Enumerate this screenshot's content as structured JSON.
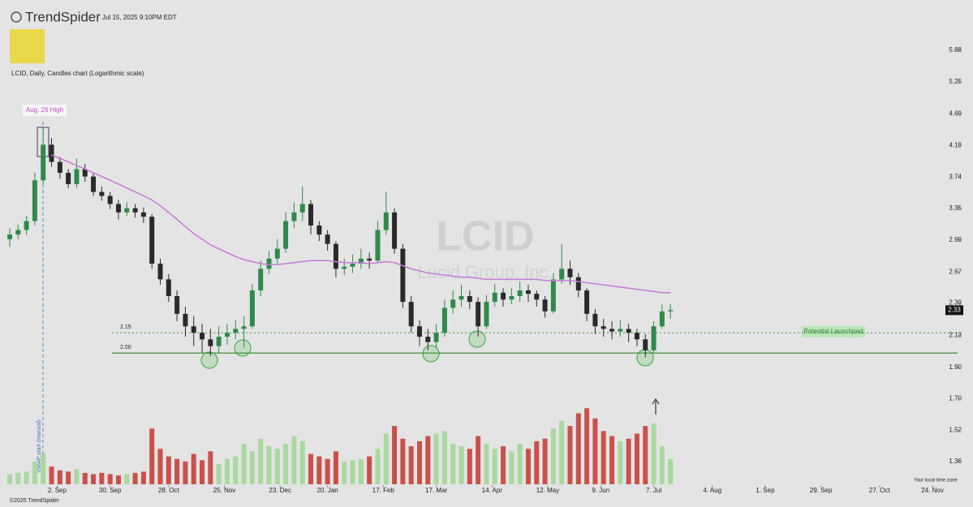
{
  "header": {
    "brand": "TrendSpider",
    "timestamp": "Jul 15, 2025 9:10PM EDT",
    "chart_label": "LCID, Daily, Candles chart (Logarithmic scale)",
    "footer": "©2025 TrendSpider",
    "timezone": "Your local time zone"
  },
  "chart_data": {
    "type": "candlestick",
    "watermark": "LCID",
    "subtitle": "Lucid Group, Inc.",
    "log_scale": true,
    "annotations": {
      "high": "Aug. 26 High",
      "launchpad": "Potential Launchpad",
      "vwap": "VWAP start (manual)"
    },
    "up_color": "#2f8a4a",
    "down_color": "#2a2a2a",
    "volume_up_color": "#a9d9a0",
    "volume_down_color": "#c9514a",
    "ma_color": "#c77ad8",
    "level_color": "#3f8f3f",
    "xlim": [
      0,
      340
    ],
    "xticks": [
      {
        "value": 17,
        "label": "2. Sep"
      },
      {
        "value": 36,
        "label": "30. Sep"
      },
      {
        "value": 57,
        "label": "28. Oct"
      },
      {
        "value": 77,
        "label": "25. Nov"
      },
      {
        "value": 97,
        "label": "23. Dec"
      },
      {
        "value": 114,
        "label": "20. Jan"
      },
      {
        "value": 134,
        "label": "17. Feb"
      },
      {
        "value": 153,
        "label": "17. Mar"
      },
      {
        "value": 173,
        "label": "14. Apr"
      },
      {
        "value": 193,
        "label": "12. May"
      },
      {
        "value": 212,
        "label": "9. Jun"
      },
      {
        "value": 231,
        "label": "7. Jul"
      },
      {
        "value": 252,
        "label": "4. Aug"
      },
      {
        "value": 271,
        "label": "1. Sep"
      },
      {
        "value": 291,
        "label": "29. Sep"
      },
      {
        "value": 312,
        "label": "27. Oct"
      },
      {
        "value": 331,
        "label": "24. Nov"
      }
    ],
    "ylim": [
      1.25,
      7.03
    ],
    "yticks": [
      5.88,
      5.25,
      4.69,
      4.19,
      3.74,
      3.35,
      2.99,
      2.67,
      2.39,
      2.13,
      {
        "value": 1.9,
        "label": "1.90"
      },
      {
        "value": 1.7,
        "label": "1.70"
      },
      1.52,
      1.36
    ],
    "levels": [
      {
        "value": 2.15,
        "label": "2.15"
      },
      {
        "value": 2.0,
        "label": "2.00"
      }
    ],
    "last_price": 2.33,
    "x": [
      0,
      3,
      6,
      9,
      12,
      15,
      18,
      21,
      24,
      27,
      30,
      33,
      36,
      39,
      42,
      45,
      48,
      51,
      54,
      57,
      60,
      63,
      66,
      69,
      72,
      75,
      78,
      81,
      84,
      87,
      90,
      93,
      96,
      99,
      102,
      105,
      108,
      111,
      114,
      117,
      120,
      123,
      126,
      129,
      132,
      135,
      138,
      141,
      144,
      147,
      150,
      153,
      156,
      159,
      162,
      165,
      168,
      171,
      174,
      177,
      180,
      183,
      186,
      189,
      192,
      195,
      198,
      201,
      204,
      207,
      210,
      213,
      216,
      219,
      222,
      225,
      228,
      231,
      234,
      237
    ],
    "open": [
      3.0,
      3.05,
      3.1,
      3.2,
      3.7,
      4.2,
      3.95,
      3.8,
      3.65,
      3.85,
      3.75,
      3.55,
      3.5,
      3.4,
      3.3,
      3.35,
      3.3,
      3.25,
      2.75,
      2.6,
      2.45,
      2.3,
      2.2,
      2.15,
      2.1,
      2.05,
      2.12,
      2.15,
      2.18,
      2.2,
      2.5,
      2.7,
      2.8,
      2.9,
      3.2,
      3.3,
      3.4,
      3.15,
      3.05,
      2.95,
      2.7,
      2.72,
      2.75,
      2.8,
      2.78,
      3.1,
      3.3,
      2.9,
      2.4,
      2.2,
      2.12,
      2.08,
      2.15,
      2.35,
      2.42,
      2.45,
      2.4,
      2.2,
      2.4,
      2.48,
      2.42,
      2.45,
      2.5,
      2.47,
      2.42,
      2.32,
      2.6,
      2.7,
      2.62,
      2.5,
      2.3,
      2.2,
      2.18,
      2.16,
      2.18,
      2.15,
      2.1,
      2.02,
      2.2,
      2.32
    ],
    "high": [
      3.12,
      3.16,
      3.26,
      3.8,
      4.45,
      4.3,
      4.02,
      3.85,
      4.0,
      3.92,
      3.8,
      3.62,
      3.55,
      3.45,
      3.42,
      3.4,
      3.36,
      3.28,
      2.8,
      2.65,
      2.5,
      2.36,
      2.28,
      2.22,
      2.18,
      2.2,
      2.22,
      2.25,
      2.28,
      2.56,
      2.78,
      2.88,
      3.0,
      3.3,
      3.42,
      3.62,
      3.45,
      3.2,
      3.1,
      2.98,
      2.8,
      2.84,
      2.9,
      2.86,
      3.2,
      3.55,
      3.35,
      2.95,
      2.45,
      2.25,
      2.18,
      2.22,
      2.42,
      2.5,
      2.55,
      2.5,
      2.44,
      2.46,
      2.56,
      2.52,
      2.52,
      2.58,
      2.55,
      2.5,
      2.45,
      2.66,
      2.95,
      2.78,
      2.66,
      2.52,
      2.34,
      2.26,
      2.24,
      2.25,
      2.22,
      2.18,
      2.14,
      2.24,
      2.38,
      2.38
    ],
    "low": [
      2.92,
      3.0,
      3.05,
      3.15,
      3.65,
      3.88,
      3.72,
      3.6,
      3.6,
      3.68,
      3.5,
      3.44,
      3.34,
      3.22,
      3.26,
      3.24,
      3.18,
      2.7,
      2.55,
      2.4,
      2.24,
      2.12,
      2.05,
      2.0,
      1.98,
      2.0,
      2.06,
      2.1,
      2.04,
      2.18,
      2.45,
      2.65,
      2.75,
      2.86,
      3.12,
      3.2,
      3.05,
      2.98,
      2.88,
      2.62,
      2.64,
      2.66,
      2.7,
      2.7,
      2.75,
      3.05,
      2.85,
      2.35,
      2.15,
      2.05,
      2.02,
      2.04,
      2.12,
      2.3,
      2.36,
      2.34,
      2.12,
      2.18,
      2.36,
      2.36,
      2.38,
      2.4,
      2.4,
      2.36,
      2.27,
      2.3,
      2.56,
      2.55,
      2.44,
      2.24,
      2.14,
      2.12,
      2.1,
      2.12,
      2.08,
      2.05,
      1.97,
      2.0,
      2.18,
      2.26
    ],
    "close": [
      3.05,
      3.1,
      3.2,
      3.7,
      4.2,
      3.95,
      3.8,
      3.65,
      3.85,
      3.75,
      3.55,
      3.5,
      3.4,
      3.3,
      3.35,
      3.3,
      3.25,
      2.75,
      2.6,
      2.45,
      2.3,
      2.2,
      2.15,
      2.1,
      2.05,
      2.12,
      2.15,
      2.18,
      2.2,
      2.5,
      2.7,
      2.8,
      2.9,
      3.2,
      3.3,
      3.4,
      3.15,
      3.05,
      2.95,
      2.7,
      2.72,
      2.75,
      2.8,
      2.78,
      3.1,
      3.3,
      2.9,
      2.4,
      2.2,
      2.12,
      2.08,
      2.15,
      2.35,
      2.42,
      2.45,
      2.4,
      2.2,
      2.4,
      2.48,
      2.42,
      2.45,
      2.5,
      2.47,
      2.42,
      2.32,
      2.6,
      2.7,
      2.62,
      2.5,
      2.3,
      2.2,
      2.18,
      2.16,
      2.18,
      2.15,
      2.1,
      2.02,
      2.2,
      2.32,
      2.33
    ],
    "volume": [
      40,
      45,
      50,
      90,
      120,
      70,
      55,
      50,
      60,
      45,
      40,
      45,
      40,
      35,
      40,
      45,
      50,
      220,
      140,
      110,
      100,
      90,
      120,
      95,
      130,
      80,
      100,
      110,
      160,
      130,
      180,
      150,
      140,
      160,
      190,
      170,
      120,
      110,
      100,
      130,
      90,
      95,
      100,
      110,
      140,
      200,
      230,
      180,
      150,
      170,
      190,
      200,
      210,
      160,
      150,
      140,
      190,
      160,
      140,
      150,
      130,
      160,
      140,
      170,
      180,
      220,
      250,
      230,
      280,
      300,
      260,
      210,
      190,
      170,
      180,
      200,
      230,
      240,
      150,
      100
    ],
    "volume_lim": [
      0,
      320
    ],
    "ma_values": [
      null,
      null,
      null,
      null,
      null,
      4.05,
      4.0,
      3.95,
      3.9,
      3.85,
      3.8,
      3.75,
      3.7,
      3.65,
      3.6,
      3.55,
      3.5,
      3.45,
      3.38,
      3.3,
      3.22,
      3.14,
      3.06,
      3.0,
      2.94,
      2.9,
      2.86,
      2.82,
      2.79,
      2.77,
      2.75,
      2.74,
      2.74,
      2.75,
      2.76,
      2.77,
      2.78,
      2.78,
      2.78,
      2.77,
      2.76,
      2.76,
      2.76,
      2.75,
      2.76,
      2.77,
      2.76,
      2.73,
      2.7,
      2.68,
      2.66,
      2.65,
      2.64,
      2.63,
      2.62,
      2.62,
      2.61,
      2.6,
      2.6,
      2.6,
      2.6,
      2.6,
      2.6,
      2.6,
      2.59,
      2.59,
      2.59,
      2.59,
      2.58,
      2.57,
      2.56,
      2.55,
      2.54,
      2.53,
      2.52,
      2.51,
      2.5,
      2.49,
      2.48,
      2.48
    ]
  }
}
